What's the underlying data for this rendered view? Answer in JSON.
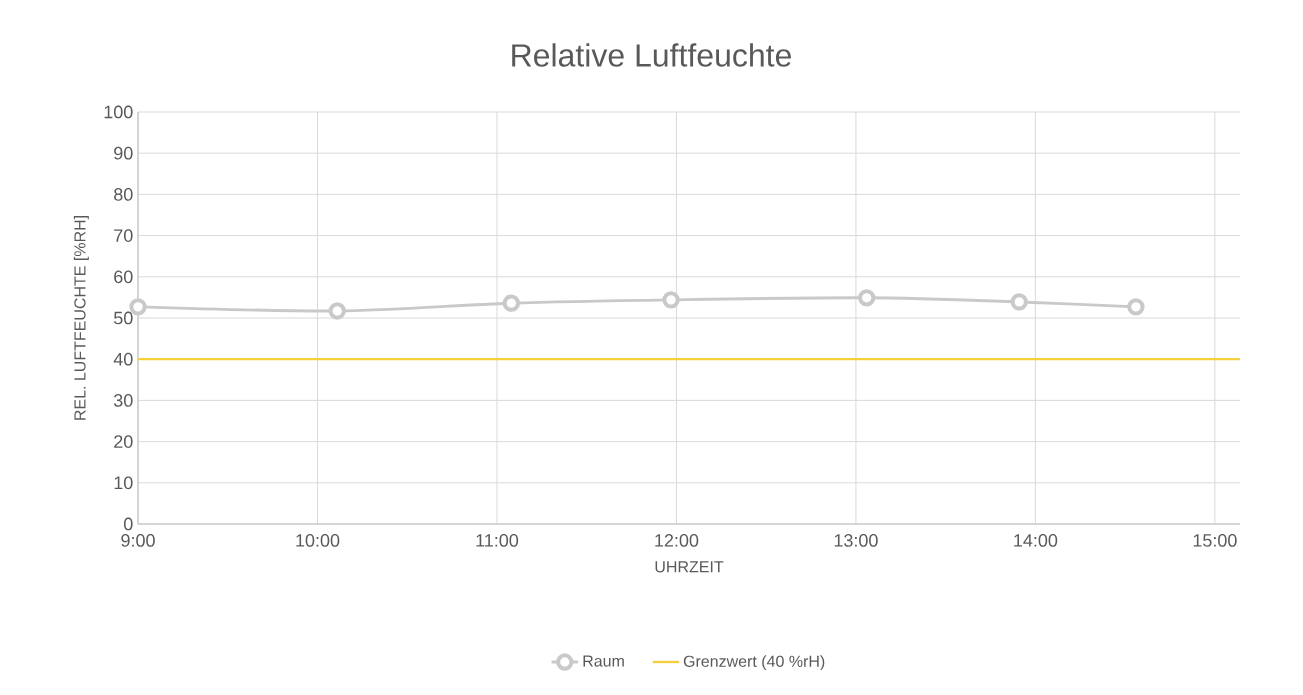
{
  "chart_data": {
    "type": "line",
    "title": "Relative Luftfeuchte",
    "xlabel": "UHRZEIT",
    "ylabel": "REL. LUFTFEUCHTE [%RH]",
    "xlim": [
      9,
      15.14
    ],
    "ylim": [
      0,
      100
    ],
    "xticks": [
      {
        "value": 9,
        "label": "9:00"
      },
      {
        "value": 10,
        "label": "10:00"
      },
      {
        "value": 11,
        "label": "11:00"
      },
      {
        "value": 12,
        "label": "12:00"
      },
      {
        "value": 13,
        "label": "13:00"
      },
      {
        "value": 14,
        "label": "14:00"
      },
      {
        "value": 15,
        "label": "15:00"
      }
    ],
    "yticks": [
      0,
      10,
      20,
      30,
      40,
      50,
      60,
      70,
      80,
      90,
      100
    ],
    "grid": true,
    "legend": "bottom",
    "series": [
      {
        "name": "Raum",
        "color": "#c9c9c9",
        "marker": "circle",
        "x": [
          9,
          10.11,
          11.08,
          11.97,
          13.06,
          13.91,
          14.56
        ],
        "values": [
          52.7,
          51.7,
          53.6,
          54.4,
          54.9,
          53.9,
          52.7
        ]
      },
      {
        "name": "Grenzwert (40 %rH)",
        "color": "#f7cf3c",
        "marker": "none",
        "x": [
          9,
          15.14
        ],
        "values": [
          40,
          40
        ]
      }
    ]
  }
}
